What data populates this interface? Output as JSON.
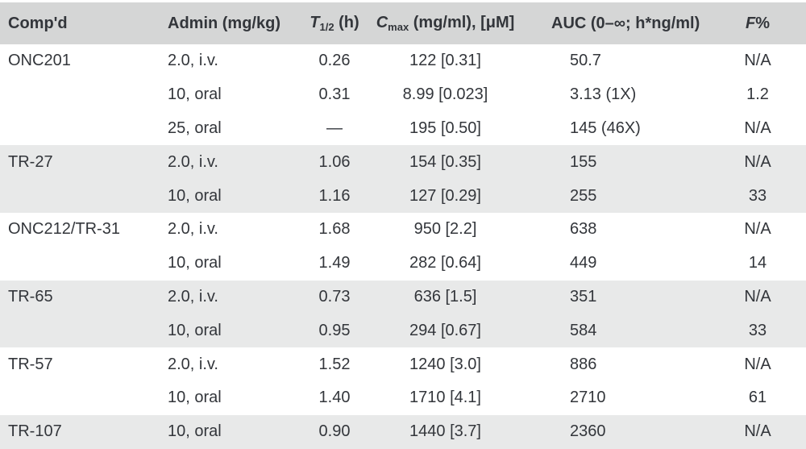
{
  "table": {
    "colors": {
      "header_bg": "#d5d6d6",
      "band_bg": "#e8e9e9",
      "row_bg": "#ffffff",
      "text": "#33363b"
    },
    "columns": [
      {
        "text": "Comp'd"
      },
      {
        "text": "Admin (mg/kg)"
      },
      {
        "italic": "T",
        "sub": "1/2",
        "post": " (h)"
      },
      {
        "italic": "C",
        "sub": "max",
        "post": " (mg/ml), [μM]"
      },
      {
        "text": "AUC (0–∞; h*ng/ml)"
      },
      {
        "italic": "F",
        "post": "%"
      }
    ],
    "rows": [
      {
        "compound": "ONC201",
        "admin": "2.0, i.v.",
        "t_half": "0.26",
        "cmax": "122 [0.31]",
        "auc": "50.7",
        "f": "N/A"
      },
      {
        "compound": "",
        "admin": "10, oral",
        "t_half": "0.31",
        "cmax": "8.99 [0.023]",
        "auc": "3.13 (1X)",
        "f": "1.2"
      },
      {
        "compound": "",
        "admin": "25, oral",
        "t_half": "—",
        "cmax": "195 [0.50]",
        "auc": "145 (46X)",
        "f": "N/A"
      },
      {
        "compound": "TR-27",
        "admin": "2.0, i.v.",
        "t_half": "1.06",
        "cmax": "154 [0.35]",
        "auc": "155",
        "f": "N/A"
      },
      {
        "compound": "",
        "admin": "10, oral",
        "t_half": "1.16",
        "cmax": "127 [0.29]",
        "auc": "255",
        "f": "33"
      },
      {
        "compound": "ONC212/TR-31",
        "admin": "2.0, i.v.",
        "t_half": "1.68",
        "cmax": "950 [2.2]",
        "auc": "638",
        "f": "N/A"
      },
      {
        "compound": "",
        "admin": "10, oral",
        "t_half": "1.49",
        "cmax": "282 [0.64]",
        "auc": "449",
        "f": "14"
      },
      {
        "compound": "TR-65",
        "admin": "2.0, i.v.",
        "t_half": "0.73",
        "cmax": "636 [1.5]",
        "auc": "351",
        "f": "N/A"
      },
      {
        "compound": "",
        "admin": "10, oral",
        "t_half": "0.95",
        "cmax": "294 [0.67]",
        "auc": "584",
        "f": "33"
      },
      {
        "compound": "TR-57",
        "admin": "2.0, i.v.",
        "t_half": "1.52",
        "cmax": "1240 [3.0]",
        "auc": "886",
        "f": "N/A"
      },
      {
        "compound": "",
        "admin": "10, oral",
        "t_half": "1.40",
        "cmax": "1710 [4.1]",
        "auc": "2710",
        "f": "61"
      },
      {
        "compound": "TR-107",
        "admin": "10, oral",
        "t_half": "0.90",
        "cmax": "1440 [3.7]",
        "auc": "2360",
        "f": "N/A"
      }
    ]
  }
}
